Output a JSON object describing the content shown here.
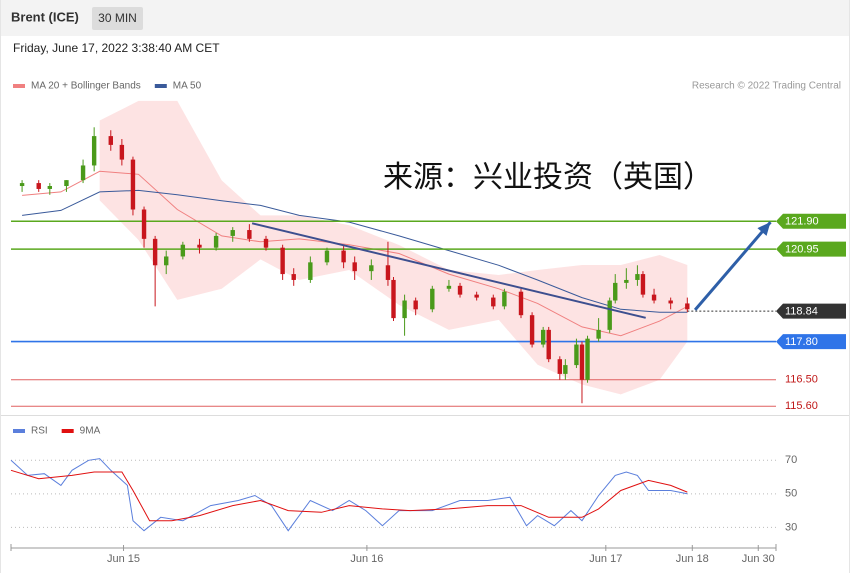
{
  "header": {
    "title": "Brent (ICE)",
    "timeframe": "30 MIN",
    "timestamp": "Friday, June 17, 2022 3:38:40 AM CET"
  },
  "chart_data": [
    {
      "type": "candlestick",
      "credit": "Research © 2022 Trading Central",
      "annotation": "来源：兴业投资（英国）",
      "up_color": "#4a9a1a",
      "down_color": "#c8161d",
      "xlim": [
        -1,
        137
      ],
      "ylim": [
        115.3,
        126.2
      ],
      "candles": {
        "x": [
          1,
          4,
          6,
          9,
          12,
          14,
          17,
          19,
          21,
          23,
          25,
          27,
          30,
          33,
          36,
          39,
          42,
          45,
          48,
          50,
          53,
          56,
          59,
          61,
          64,
          67,
          68,
          70,
          72,
          75,
          78,
          80,
          83,
          86,
          88,
          91,
          93,
          95,
          96,
          98,
          99,
          101,
          102,
          103,
          105,
          107,
          108,
          110,
          112,
          113,
          115,
          118,
          121
        ],
        "open": [
          123.1,
          123.2,
          123.0,
          123.1,
          123.3,
          123.8,
          124.8,
          124.5,
          124.0,
          122.3,
          121.3,
          120.4,
          120.7,
          121.1,
          121.0,
          121.4,
          121.6,
          121.3,
          121.0,
          120.1,
          119.9,
          120.5,
          120.9,
          120.5,
          120.2,
          120.4,
          119.9,
          118.6,
          119.2,
          118.9,
          119.6,
          119.7,
          119.4,
          119.3,
          119.0,
          119.5,
          118.7,
          117.7,
          118.2,
          117.2,
          116.7,
          117.0,
          117.7,
          116.5,
          117.9,
          118.2,
          119.2,
          119.8,
          119.9,
          120.1,
          119.4,
          119.2,
          119.1
        ],
        "high": [
          123.3,
          123.3,
          123.2,
          123.3,
          124.0,
          125.1,
          125.0,
          124.7,
          124.1,
          122.4,
          121.4,
          120.9,
          121.2,
          121.3,
          121.5,
          121.7,
          121.8,
          121.4,
          121.1,
          120.3,
          120.7,
          121.0,
          121.1,
          120.7,
          120.6,
          121.2,
          120.0,
          119.4,
          119.3,
          119.7,
          119.9,
          119.8,
          119.5,
          119.4,
          119.6,
          119.6,
          118.8,
          118.3,
          118.3,
          117.3,
          117.2,
          117.9,
          117.8,
          118.0,
          118.6,
          119.3,
          120.1,
          120.3,
          120.4,
          120.2,
          119.6,
          119.3,
          119.3
        ],
        "low": [
          122.9,
          122.9,
          122.8,
          122.9,
          123.2,
          123.6,
          124.3,
          123.8,
          122.1,
          121.0,
          119.0,
          120.1,
          120.6,
          120.8,
          120.9,
          121.2,
          121.2,
          120.9,
          119.9,
          119.7,
          119.8,
          120.4,
          120.3,
          119.9,
          119.9,
          119.7,
          118.5,
          118.0,
          118.7,
          118.8,
          119.5,
          119.3,
          119.2,
          118.9,
          118.9,
          118.6,
          117.6,
          117.6,
          117.1,
          116.5,
          116.5,
          116.9,
          115.7,
          116.4,
          117.8,
          118.1,
          119.1,
          119.6,
          119.7,
          119.3,
          119.1,
          118.9,
          118.8
        ],
        "close": [
          123.2,
          123.0,
          123.1,
          123.3,
          123.8,
          124.8,
          124.5,
          124.0,
          122.3,
          121.3,
          120.4,
          120.7,
          121.1,
          121.0,
          121.4,
          121.6,
          121.3,
          121.0,
          120.1,
          119.9,
          120.5,
          120.9,
          120.5,
          120.2,
          120.4,
          119.9,
          118.6,
          119.2,
          118.9,
          119.6,
          119.7,
          119.4,
          119.3,
          119.0,
          119.5,
          118.7,
          117.7,
          118.2,
          117.2,
          116.7,
          117.0,
          117.7,
          116.5,
          117.9,
          118.2,
          119.2,
          119.8,
          119.9,
          120.1,
          119.4,
          119.2,
          119.1,
          118.9
        ]
      },
      "series": [
        {
          "name": "MA 20 + Bollinger Bands",
          "color": "#f08080",
          "x": [
            1,
            8,
            15,
            22,
            29,
            37,
            44,
            51,
            60,
            69,
            78,
            87,
            94,
            102,
            109,
            116,
            121
          ],
          "values": [
            122.78,
            122.9,
            123.6,
            123.5,
            122.3,
            121.4,
            121.2,
            121.3,
            121.1,
            120.8,
            120.1,
            119.6,
            119.1,
            118.3,
            118.0,
            118.5,
            119.0
          ],
          "band": {
            "color": "#fddcdc",
            "x": [
              15,
              22,
              29,
              37,
              44,
              51,
              60,
              69,
              78,
              87,
              94,
              102,
              109,
              116,
              121
            ],
            "upper": [
              125.33,
              126.0,
              126.0,
              123.29,
              122.1,
              122.1,
              121.76,
              121.09,
              120.24,
              120.07,
              120.24,
              120.41,
              120.41,
              120.75,
              120.41
            ],
            "lower": [
              122.61,
              121.26,
              119.22,
              119.6,
              120.6,
              119.9,
              120.24,
              119.05,
              118.2,
              118.54,
              117.01,
              116.34,
              116.0,
              116.5,
              117.8
            ]
          }
        },
        {
          "name": "MA 50",
          "color": "#3a5a9a",
          "x": [
            1,
            8,
            15,
            22,
            29,
            37,
            44,
            51,
            60,
            69,
            78,
            87,
            94,
            102,
            109,
            116,
            121
          ],
          "values": [
            122.1,
            122.27,
            122.9,
            122.95,
            122.8,
            122.6,
            122.44,
            122.1,
            121.87,
            121.4,
            120.9,
            120.4,
            119.9,
            119.3,
            118.9,
            118.8,
            118.8
          ]
        }
      ],
      "trendlines": [
        {
          "color": "#3d4f8f",
          "x": [
            42.5,
            113.5
          ],
          "values": [
            121.83,
            118.61
          ]
        },
        {
          "color": "#2e5fa8",
          "arrow": true,
          "x": [
            122.4,
            136
          ],
          "values": [
            118.88,
            121.87
          ]
        }
      ],
      "levels": [
        {
          "value": 121.9,
          "label": "121.90",
          "color": "#5aa81e",
          "tag": true
        },
        {
          "value": 120.95,
          "label": "120.95",
          "color": "#5aa81e",
          "tag": true
        },
        {
          "value": 118.84,
          "label": "118.84",
          "color": "#333333",
          "tag": true,
          "dash": true
        },
        {
          "value": 117.8,
          "label": "117.80",
          "color": "#2f74e8",
          "tag": true
        },
        {
          "value": 116.5,
          "label": "116.50",
          "color": "#e06060",
          "tag": false
        },
        {
          "value": 115.6,
          "label": "115.60",
          "color": "#e06060",
          "tag": false
        }
      ]
    },
    {
      "type": "line",
      "xlim": [
        -1,
        137
      ],
      "ylim": [
        19.5,
        94
      ],
      "yticks": [
        30,
        50,
        70
      ],
      "grid": true,
      "xticks": [
        {
          "value": 19.3,
          "label": "Jun 15"
        },
        {
          "value": 63.2,
          "label": "Jun 16"
        },
        {
          "value": 106.3,
          "label": "Jun 17"
        },
        {
          "value": 121.9,
          "label": "Jun 18"
        },
        {
          "value": 133.8,
          "label": "Jun 30"
        }
      ],
      "series": [
        {
          "name": "RSI",
          "color": "#5b7fdc",
          "x": [
            -1,
            2,
            5,
            8,
            10,
            13,
            15,
            17,
            20,
            21,
            23,
            26,
            30,
            35,
            40,
            43,
            46,
            49,
            53,
            57,
            60,
            63,
            66,
            69,
            75,
            80,
            85,
            89,
            92,
            94,
            97,
            100,
            102,
            105,
            108,
            110,
            112,
            114,
            118,
            121
          ],
          "values": [
            70,
            61,
            62,
            55,
            64,
            70,
            71,
            64,
            55,
            34,
            28,
            36,
            34,
            43,
            46,
            49,
            43,
            28,
            46,
            40,
            46,
            40,
            31,
            40,
            40,
            46,
            46,
            48,
            31,
            37,
            31,
            40,
            34,
            49,
            61,
            63,
            61,
            52,
            52,
            50
          ]
        },
        {
          "name": "9MA",
          "color": "#e01010",
          "x": [
            -1,
            4,
            10,
            14,
            19,
            21,
            24,
            28,
            33,
            39,
            44,
            49,
            55,
            60,
            66,
            71,
            78,
            85,
            91,
            96,
            102,
            105,
            109,
            114,
            118,
            121
          ],
          "values": [
            64,
            59,
            61,
            63,
            63,
            52,
            34,
            34,
            37,
            43,
            46,
            40,
            39,
            43,
            41,
            40,
            41,
            43,
            43,
            36,
            36,
            41,
            52,
            58,
            55,
            51
          ]
        }
      ]
    }
  ]
}
